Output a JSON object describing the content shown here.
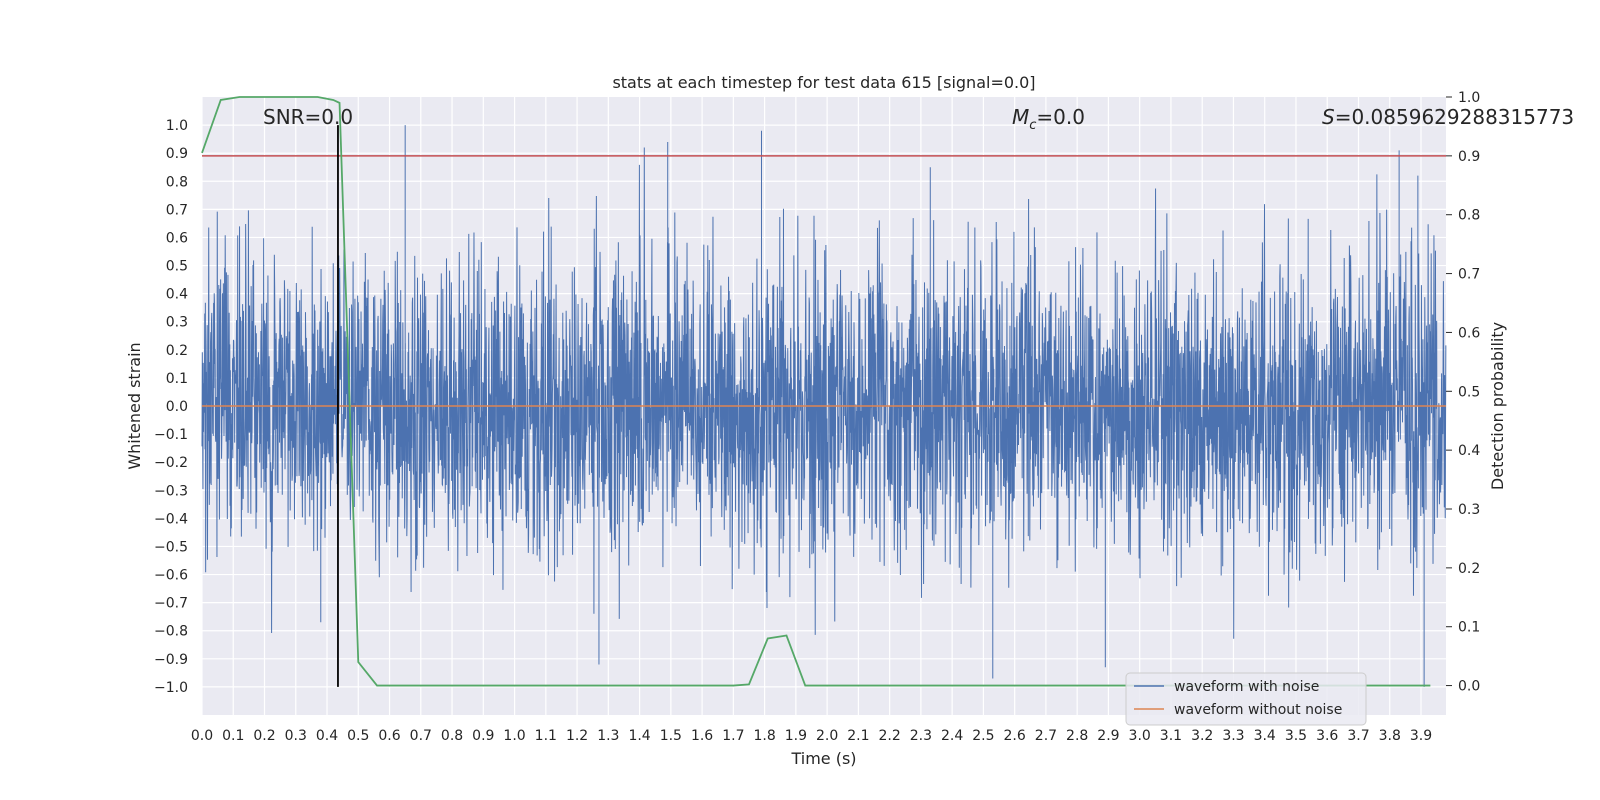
{
  "chart_data": {
    "type": "line",
    "title": "stats at each timestep for test data 615 [signal=0.0]",
    "xlabel": "Time (s)",
    "ylabel_left": "Whitened strain",
    "ylabel_right": "Detection probability",
    "xlim": [
      0.0,
      3.98
    ],
    "ylim_left": [
      -1.1,
      1.1
    ],
    "ylim_right": [
      -0.05,
      1.0
    ],
    "x_ticks": [
      "0.0",
      "0.1",
      "0.2",
      "0.3",
      "0.4",
      "0.5",
      "0.6",
      "0.7",
      "0.8",
      "0.9",
      "1.0",
      "1.1",
      "1.2",
      "1.3",
      "1.4",
      "1.5",
      "1.6",
      "1.7",
      "1.8",
      "1.9",
      "2.0",
      "2.1",
      "2.2",
      "2.3",
      "2.4",
      "2.5",
      "2.6",
      "2.7",
      "2.8",
      "2.9",
      "3.0",
      "3.1",
      "3.2",
      "3.3",
      "3.4",
      "3.5",
      "3.6",
      "3.7",
      "3.8",
      "3.9"
    ],
    "y_ticks_left": [
      "1.0",
      "0.9",
      "0.8",
      "0.7",
      "0.6",
      "0.5",
      "0.4",
      "0.3",
      "0.2",
      "0.1",
      "0.0",
      "−0.1",
      "−0.2",
      "−0.3",
      "−0.4",
      "−0.5",
      "−0.6",
      "−0.7",
      "−0.8",
      "−0.9",
      "−1.0"
    ],
    "y_ticks_right": [
      "1.0",
      "0.9",
      "0.8",
      "0.7",
      "0.6",
      "0.5",
      "0.4",
      "0.3",
      "0.2",
      "0.1",
      "0.0"
    ],
    "annotations": {
      "snr": "SNR=0.0",
      "mc_symbol": "M",
      "mc_sub": "c",
      "mc_value": "=0.0",
      "s_symbol": "S",
      "s_value": "=0.0859629288315773"
    },
    "series": [
      {
        "name": "waveform with noise",
        "color": "#4c72b0",
        "axis": "left",
        "kind": "noise",
        "n_points": 4096,
        "amplitude_range": [
          -1.0,
          1.0
        ],
        "notable_peaks": [
          {
            "x": 0.65,
            "y": 1.0
          },
          {
            "x": 1.49,
            "y": 0.94
          },
          {
            "x": 1.79,
            "y": 0.98
          },
          {
            "x": 2.33,
            "y": 0.85
          },
          {
            "x": 3.83,
            "y": 0.91
          },
          {
            "x": 3.89,
            "y": 0.82
          }
        ],
        "notable_troughs": [
          {
            "x": 0.38,
            "y": -0.77
          },
          {
            "x": 1.27,
            "y": -0.92
          },
          {
            "x": 2.53,
            "y": -0.97
          },
          {
            "x": 2.89,
            "y": -0.93
          },
          {
            "x": 3.91,
            "y": -1.0
          }
        ]
      },
      {
        "name": "waveform without noise",
        "color": "#dd8452",
        "axis": "left",
        "x": [
          0.0,
          3.98
        ],
        "y": [
          0.0,
          0.0
        ]
      },
      {
        "name": "detection probability",
        "color": "#55a868",
        "axis": "right",
        "x": [
          0.0,
          0.06,
          0.12,
          0.19,
          0.25,
          0.31,
          0.37,
          0.42,
          0.44,
          0.5,
          0.56,
          0.62,
          1.7,
          1.75,
          1.81,
          1.87,
          1.93,
          2.0,
          3.0,
          3.93
        ],
        "y": [
          0.905,
          0.995,
          1.0,
          1.0,
          1.0,
          1.0,
          1.0,
          0.995,
          0.99,
          0.04,
          0.0,
          0.0,
          0.0,
          0.002,
          0.08,
          0.085,
          0.0,
          0.0,
          0.0,
          0.0
        ]
      }
    ],
    "reference_lines": [
      {
        "kind": "horizontal",
        "axis": "right",
        "value": 0.9,
        "color": "#c44e52"
      },
      {
        "kind": "vertical",
        "x": 0.435,
        "y_range": [
          -1.0,
          1.0
        ],
        "color": "#000000"
      }
    ],
    "legend": {
      "placement": "bottom-right",
      "entries": [
        {
          "label": "waveform with noise",
          "color": "#4c72b0"
        },
        {
          "label": "waveform without noise",
          "color": "#dd8452"
        }
      ]
    },
    "grid": true,
    "background": "#eaeaf2"
  }
}
